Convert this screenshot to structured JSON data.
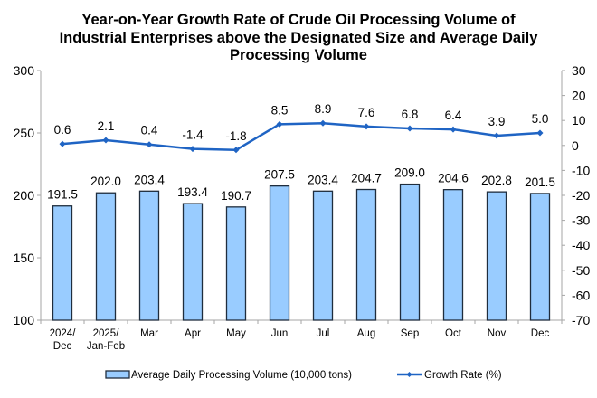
{
  "chart_data": {
    "type": "bar+line",
    "title_lines": [
      "Year-on-Year Growth Rate of Crude Oil Processing Volume of",
      "Industrial Enterprises above the Designated Size and Average Daily",
      "Processing Volume"
    ],
    "categories": [
      [
        "2024/",
        "Dec"
      ],
      [
        "2025/",
        "Jan-Feb"
      ],
      [
        "Mar"
      ],
      [
        "Apr"
      ],
      [
        "May"
      ],
      [
        "Jun"
      ],
      [
        "Jul"
      ],
      [
        "Aug"
      ],
      [
        "Sep"
      ],
      [
        "Oct"
      ],
      [
        "Nov"
      ],
      [
        "Dec"
      ]
    ],
    "series": [
      {
        "name": "Average Daily Processing Volume (10,000 tons)",
        "type": "bar",
        "axis": "left",
        "color": "#99CCFF",
        "edge_color": "#1F2D3D",
        "values": [
          191.5,
          202.0,
          203.4,
          193.4,
          190.7,
          207.5,
          203.4,
          204.7,
          209.0,
          204.6,
          202.8,
          201.5
        ],
        "labels": [
          "191.5",
          "202.0",
          "203.4",
          "193.4",
          "190.7",
          "207.5",
          "203.4",
          "204.7",
          "209.0",
          "204.6",
          "202.8",
          "201.5"
        ]
      },
      {
        "name": "Growth Rate (%)",
        "type": "line",
        "axis": "right",
        "color": "#1F64C4",
        "marker": "diamond",
        "values": [
          0.6,
          2.1,
          0.4,
          -1.4,
          -1.8,
          8.5,
          8.9,
          7.6,
          6.8,
          6.4,
          3.9,
          5.0
        ],
        "labels": [
          "0.6",
          "2.1",
          "0.4",
          "-1.4",
          "-1.8",
          "8.5",
          "8.9",
          "7.6",
          "6.8",
          "6.4",
          "3.9",
          "5.0"
        ]
      }
    ],
    "left_axis": {
      "range": [
        100,
        300
      ],
      "ticks": [
        "300",
        "250",
        "200",
        "150",
        "100"
      ],
      "tick_values": [
        300,
        250,
        200,
        150,
        100
      ]
    },
    "right_axis": {
      "range": [
        -70,
        30
      ],
      "ticks": [
        "30",
        "20",
        "10",
        "0",
        "-10",
        "-20",
        "-30",
        "-40",
        "-50",
        "-60",
        "-70"
      ],
      "tick_values": [
        30,
        20,
        10,
        0,
        -10,
        -20,
        -30,
        -40,
        -50,
        -60,
        -70
      ]
    },
    "xlabel": "",
    "ylabel": "",
    "grid": false,
    "legend": {
      "placement": "bottom",
      "entries": [
        "Average Daily Processing Volume (10,000 tons)",
        "Growth Rate (%)"
      ]
    },
    "axis_color": "#A6A6A6"
  }
}
